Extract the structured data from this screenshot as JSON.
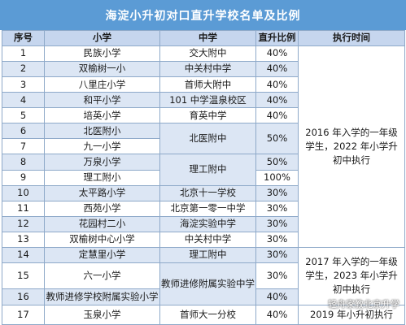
{
  "title": "海淀小升初对口直升学校名单及比例",
  "headers": [
    "序号",
    "小学",
    "中学",
    "直升比例",
    "执行时间"
  ],
  "rows": [
    {
      "no": "1",
      "primary": "民族小学",
      "middle": "交大附中",
      "ratio": "40%"
    },
    {
      "no": "2",
      "primary": "双榆树一小",
      "middle": "中关村中学",
      "ratio": "40%"
    },
    {
      "no": "3",
      "primary": "八里庄小学",
      "middle": "首师大附中",
      "ratio": "40%"
    },
    {
      "no": "4",
      "primary": "和平小学",
      "middle": "101 中学温泉校区",
      "ratio": "40%"
    },
    {
      "no": "5",
      "primary": "培英小学",
      "middle": "育英中学",
      "ratio": "40%"
    },
    {
      "no": "6",
      "primary": "北医附小"
    },
    {
      "no": "7",
      "primary": "九一小学"
    },
    {
      "no": "8",
      "primary": "万泉小学",
      "ratio": "50%"
    },
    {
      "no": "9",
      "primary": "理工附小",
      "ratio": "100%"
    },
    {
      "no": "10",
      "primary": "太平路小学",
      "middle": "北京十一学校",
      "ratio": "30%"
    },
    {
      "no": "11",
      "primary": "西苑小学",
      "middle": "北京第一零一中学",
      "ratio": "30%"
    },
    {
      "no": "12",
      "primary": "花园村二小",
      "middle": "海淀实验中学",
      "ratio": "30%"
    },
    {
      "no": "13",
      "primary": "双榆树中心小学",
      "middle": "中关村中学",
      "ratio": "30%"
    },
    {
      "no": "14",
      "primary": "定慧里小学",
      "middle": "理工附中",
      "ratio": "30%"
    },
    {
      "no": "15",
      "primary": "六一小学",
      "ratio": "30%"
    },
    {
      "no": "16",
      "primary": "教师进修学校附属实验小学",
      "ratio": "40%"
    },
    {
      "no": "17",
      "primary": "玉泉小学",
      "middle": "首师大一分校",
      "ratio": "40%"
    }
  ],
  "merged": {
    "beiyi_middle": "北医附中",
    "beiyi_ratio": "50%",
    "ligong_middle": "理工附中",
    "jiaoshi_middle": "教师进修附属实验中学"
  },
  "time_groups": [
    "2016 年入学的一年级学生，2022 年小学升初中执行",
    "2017 年入学的一年级学生，2023 年小学升初中执行",
    "2019 年小升初执行"
  ],
  "watermark": "轻舟家教北京升学"
}
